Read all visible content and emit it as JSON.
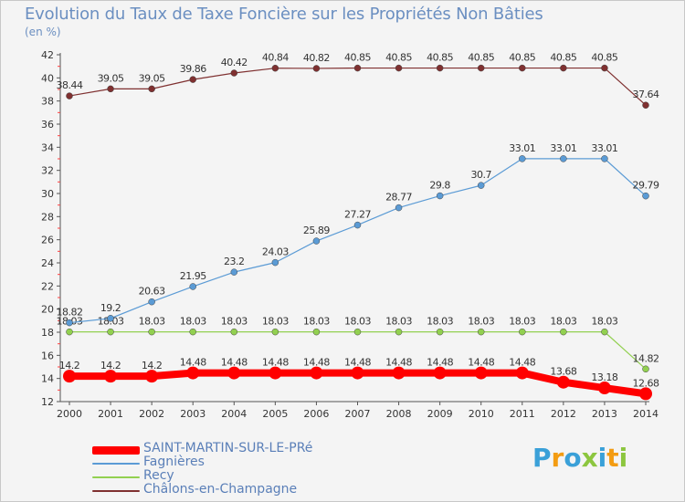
{
  "chart_data": {
    "type": "line",
    "title": "Evolution du Taux de Taxe Foncière sur les Propriétés Non Bâties",
    "subtitle": "(en %)",
    "x": [
      2000,
      2001,
      2002,
      2003,
      2004,
      2005,
      2006,
      2007,
      2008,
      2009,
      2010,
      2011,
      2012,
      2013,
      2014
    ],
    "ylim": [
      12,
      42
    ],
    "yticks": [
      12,
      14,
      16,
      18,
      20,
      22,
      24,
      26,
      28,
      30,
      32,
      34,
      36,
      38,
      40,
      42
    ],
    "grid": false,
    "legend_position": "bottom-left",
    "series": [
      {
        "name": "SAINT-MARTIN-SUR-LE-PRé",
        "color": "#ff0000",
        "values": [
          14.2,
          14.2,
          14.2,
          14.48,
          14.48,
          14.48,
          14.48,
          14.48,
          14.48,
          14.48,
          14.48,
          14.48,
          13.68,
          13.18,
          12.68
        ],
        "labels": [
          "14.2",
          "14.2",
          "14.2",
          "14.48",
          "14.48",
          "14.48",
          "14.48",
          "14.48",
          "14.48",
          "14.48",
          "14.48",
          "14.48",
          "13.68",
          "13.18",
          "12.68"
        ]
      },
      {
        "name": "Fagnières",
        "color": "#5b9bd5",
        "values": [
          18.82,
          19.2,
          20.63,
          21.95,
          23.2,
          24.03,
          25.89,
          27.27,
          28.77,
          29.8,
          30.7,
          33.01,
          33.01,
          33.01,
          29.79
        ],
        "labels": [
          "18.82",
          "19.2",
          "20.63",
          "21.95",
          "23.2",
          "24.03",
          "25.89",
          "27.27",
          "28.77",
          "29.8",
          "30.7",
          "33.01",
          "33.01",
          "33.01",
          "29.79"
        ]
      },
      {
        "name": "Recy",
        "color": "#92d050",
        "values": [
          18.03,
          18.03,
          18.03,
          18.03,
          18.03,
          18.03,
          18.03,
          18.03,
          18.03,
          18.03,
          18.03,
          18.03,
          18.03,
          18.03,
          14.82
        ],
        "labels": [
          "18.03",
          "18.03",
          "18.03",
          "18.03",
          "18.03",
          "18.03",
          "18.03",
          "18.03",
          "18.03",
          "18.03",
          "18.03",
          "18.03",
          "18.03",
          "18.03",
          "14.82"
        ]
      },
      {
        "name": "Châlons-en-Champagne",
        "color": "#7f3030",
        "values": [
          38.44,
          39.05,
          39.05,
          39.86,
          40.42,
          40.84,
          40.82,
          40.85,
          40.85,
          40.85,
          40.85,
          40.85,
          40.85,
          40.85,
          37.64
        ],
        "labels": [
          "38.44",
          "39.05",
          "39.05",
          "39.86",
          "40.42",
          "40.84",
          "40.82",
          "40.85",
          "40.85",
          "40.85",
          "40.85",
          "40.85",
          "40.85",
          "40.85",
          "37.64"
        ]
      }
    ]
  },
  "legend": [
    {
      "label": "SAINT-MARTIN-SUR-LE-PRé",
      "color": "#ff0000"
    },
    {
      "label": "Fagnières",
      "color": "#5b9bd5"
    },
    {
      "label": "Recy",
      "color": "#92d050"
    },
    {
      "label": "Châlons-en-Champagne",
      "color": "#7f3030"
    }
  ],
  "logo": {
    "text": "Proxiti",
    "letters": [
      "P",
      "r",
      "o",
      "x",
      "i",
      "t",
      "i"
    ],
    "colors": [
      "#3aa0d8",
      "#f39c12",
      "#3aa0d8",
      "#8cc63f",
      "#3aa0d8",
      "#f39c12",
      "#8cc63f"
    ]
  }
}
